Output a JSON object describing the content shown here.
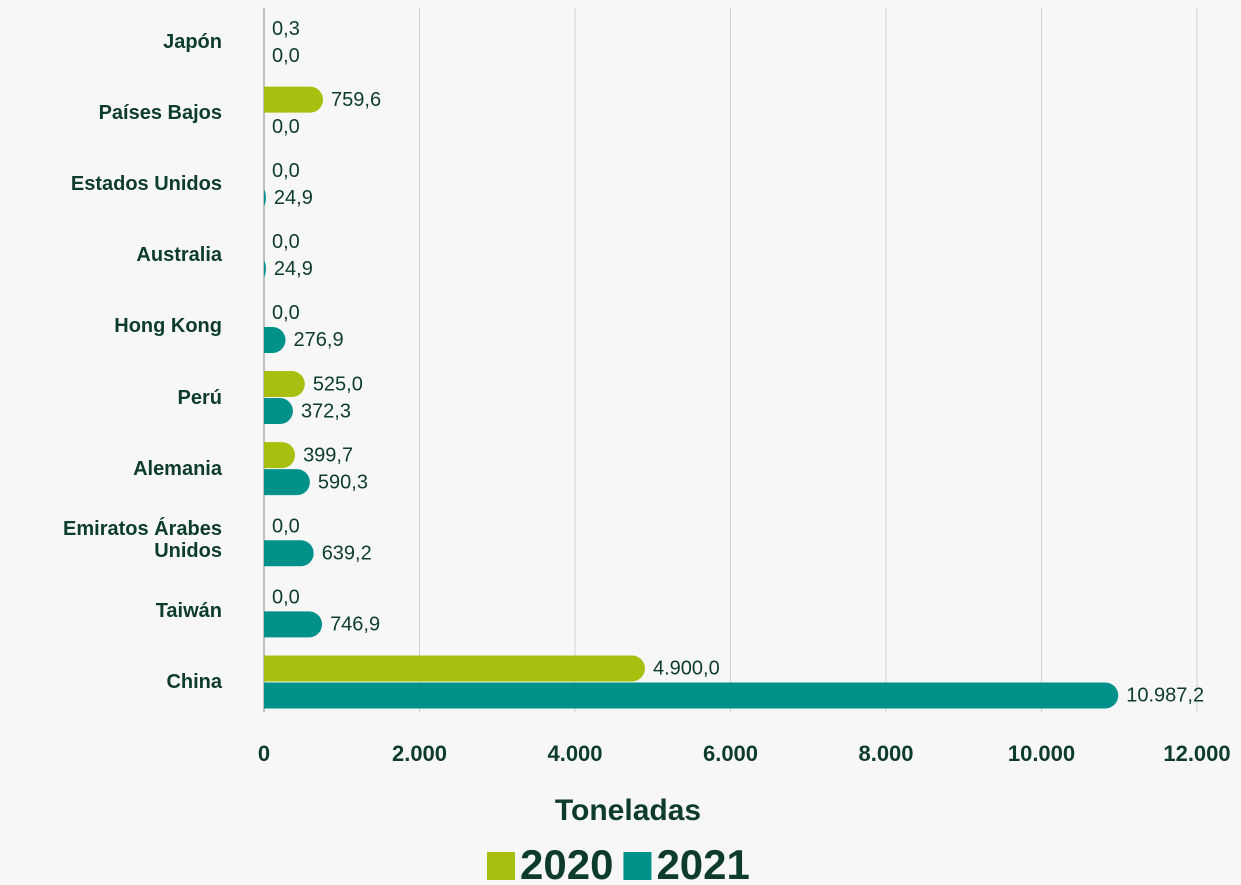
{
  "chart_data": {
    "type": "bar",
    "orientation": "horizontal",
    "categories": [
      "Japón",
      "Países Bajos",
      "Estados Unidos",
      "Australia",
      "Hong Kong",
      "Perú",
      "Alemania",
      "Emiratos Árabes Unidos",
      "Taiwán",
      "China"
    ],
    "series": [
      {
        "name": "2020",
        "color": "#a9bf0f",
        "values": [
          0.3,
          759.6,
          0.0,
          0.0,
          0.0,
          525.0,
          399.7,
          0.0,
          0.0,
          4900.0
        ],
        "value_labels": [
          "0,3",
          "759,6",
          "0,0",
          "0,0",
          "0,0",
          "525,0",
          "399,7",
          "0,0",
          "0,0",
          "4.900,0"
        ]
      },
      {
        "name": "2021",
        "color": "#00918a",
        "values": [
          0.0,
          0.0,
          24.9,
          24.9,
          276.9,
          372.3,
          590.3,
          639.2,
          746.9,
          10987.2
        ],
        "value_labels": [
          "0,0",
          "0,0",
          "24,9",
          "24,9",
          "276,9",
          "372,3",
          "590,3",
          "639,2",
          "746,9",
          "10.987,2"
        ]
      }
    ],
    "xlabel": "Toneladas",
    "xlim": [
      0,
      12000
    ],
    "xticks": [
      0,
      {
        "value": 2000,
        "label": "2.000"
      },
      {
        "value": 4000,
        "label": "4.000"
      },
      {
        "value": 6000,
        "label": "6.000"
      },
      {
        "value": 8000,
        "label": "8.000"
      },
      {
        "value": 10000,
        "label": "10.000"
      },
      {
        "value": 12000,
        "label": "12.000"
      }
    ],
    "grid": true,
    "legend": "bottom"
  }
}
